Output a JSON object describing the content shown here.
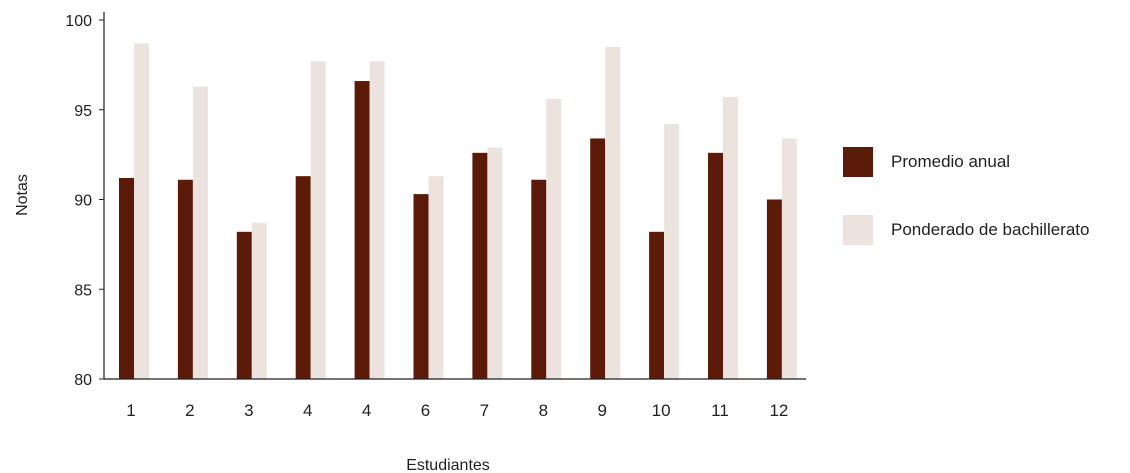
{
  "chart_data": {
    "type": "bar",
    "categories": [
      "1",
      "2",
      "3",
      "4",
      "4",
      "6",
      "7",
      "8",
      "9",
      "10",
      "11",
      "12"
    ],
    "series": [
      {
        "name": "Promedio anual",
        "color": "#5c1a08",
        "values": [
          91.2,
          91.1,
          88.2,
          91.3,
          96.6,
          90.3,
          92.6,
          91.1,
          93.4,
          88.2,
          92.6,
          90.0
        ]
      },
      {
        "name": "Ponderado de bachillerato",
        "color": "#ede3de",
        "values": [
          98.7,
          96.3,
          88.7,
          97.7,
          97.7,
          91.3,
          92.9,
          95.6,
          98.5,
          94.2,
          95.7,
          93.4
        ]
      }
    ],
    "xlabel": "Estudiantes",
    "ylabel": "Notas",
    "ylim": [
      80,
      100
    ],
    "yticks": [
      "80",
      "85",
      "90",
      "95",
      "100"
    ],
    "grid": false,
    "legend_position": "right"
  }
}
